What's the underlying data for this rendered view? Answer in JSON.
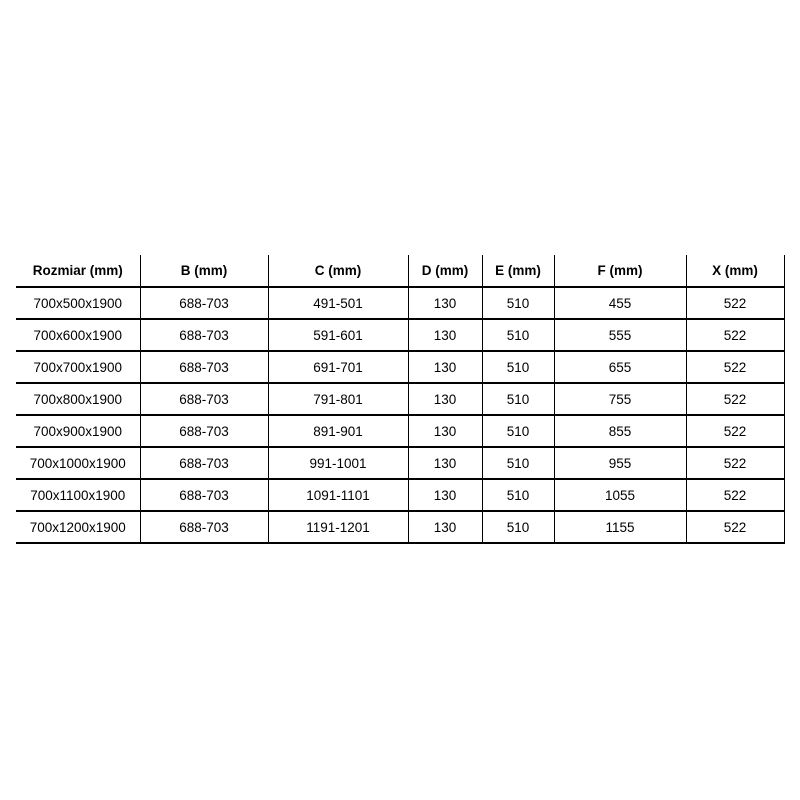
{
  "chart_data": {
    "type": "table",
    "title": "",
    "columns": [
      "Rozmiar (mm)",
      "B (mm)",
      "C (mm)",
      "D (mm)",
      "E (mm)",
      "F (mm)",
      "X (mm)"
    ],
    "rows": [
      [
        "700x500x1900",
        "688-703",
        "491-501",
        "130",
        "510",
        "455",
        "522"
      ],
      [
        "700x600x1900",
        "688-703",
        "591-601",
        "130",
        "510",
        "555",
        "522"
      ],
      [
        "700x700x1900",
        "688-703",
        "691-701",
        "130",
        "510",
        "655",
        "522"
      ],
      [
        "700x800x1900",
        "688-703",
        "791-801",
        "130",
        "510",
        "755",
        "522"
      ],
      [
        "700x900x1900",
        "688-703",
        "891-901",
        "130",
        "510",
        "855",
        "522"
      ],
      [
        "700x1000x1900",
        "688-703",
        "991-1001",
        "130",
        "510",
        "955",
        "522"
      ],
      [
        "700x1100x1900",
        "688-703",
        "1091-1101",
        "130",
        "510",
        "1055",
        "522"
      ],
      [
        "700x1200x1900",
        "688-703",
        "1191-1201",
        "130",
        "510",
        "1155",
        "522"
      ]
    ]
  },
  "colors": {
    "background": "#ffffff",
    "border": "#000000",
    "text": "#000000"
  }
}
